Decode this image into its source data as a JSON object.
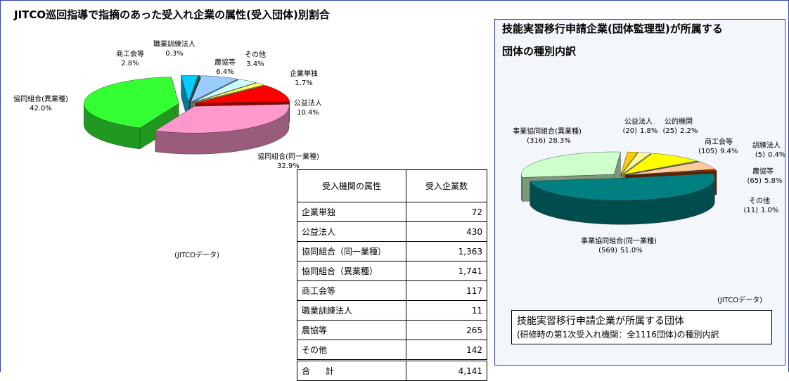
{
  "chart_data": [
    {
      "type": "pie",
      "title": "JITCO巡回指導で指摘のあった受入れ企業の属性(受入団体)別割合",
      "categories": [
        "企業単独",
        "公益法人",
        "協同組合(同一業種)",
        "協同組合(異業種)",
        "商工会等",
        "職業訓練法人",
        "農協等",
        "その他"
      ],
      "values": [
        1.7,
        10.4,
        32.9,
        42.0,
        2.8,
        0.3,
        6.4,
        3.4
      ],
      "value_labels": [
        "1.7%",
        "10.4%",
        "32.9%",
        "42.0%",
        "2.8%",
        "0.3%",
        "6.4%",
        "3.4%"
      ],
      "colors": [
        "#ffff66",
        "#ff0000",
        "#ff99cc",
        "#33ff33",
        "#00ccff",
        "#336666",
        "#99ccff",
        "#ccffff"
      ],
      "source": "(JITCOデータ)"
    },
    {
      "type": "pie",
      "title": [
        "技能実習移行申請企業(団体監理型)が所属する",
        "団体の種別内訳"
      ],
      "categories": [
        "公益法人",
        "公的機関",
        "商工会等",
        "訓練法人",
        "農協等",
        "その他",
        "事業協同組合(同一業種)",
        "事業協同組合(異業種)"
      ],
      "values": [
        1.8,
        2.2,
        9.4,
        0.4,
        5.8,
        1.0,
        51.0,
        28.3
      ],
      "value_labels": [
        "1.8%",
        "2.2%",
        "9.4%",
        "0.4%",
        "5.8%",
        "1.0%",
        "51.0%",
        "28.3%"
      ],
      "counts": [
        20,
        25,
        105,
        5,
        65,
        11,
        569,
        316
      ],
      "count_labels": [
        "(20)",
        "(25)",
        "(105)",
        "(5)",
        "(65)",
        "(11)",
        "(569)",
        "(316)"
      ],
      "colors": [
        "#ffcc00",
        "#ffff99",
        "#ffff00",
        "#ccffff",
        "#ffcc99",
        "#993300",
        "#008080",
        "#ccffcc"
      ],
      "source": "(JITCOデータ)",
      "note": [
        "技能実習移行申請企業が所属する団体",
        "(研修時の第1次受入れ機関：全1116団体)の種別内訳"
      ]
    }
  ],
  "table": {
    "header": [
      "受入機関の属性",
      "受入企業数"
    ],
    "rows": [
      [
        "企業単独",
        "72"
      ],
      [
        "公益法人",
        "430"
      ],
      [
        "協同組合（同一業種）",
        "1,363"
      ],
      [
        "協同組合（異業種）",
        "1,741"
      ],
      [
        "商工会等",
        "117"
      ],
      [
        "職業訓練法人",
        "11"
      ],
      [
        "農協等",
        "265"
      ],
      [
        "その他",
        "142"
      ],
      [
        "合計",
        "4,141"
      ]
    ]
  }
}
